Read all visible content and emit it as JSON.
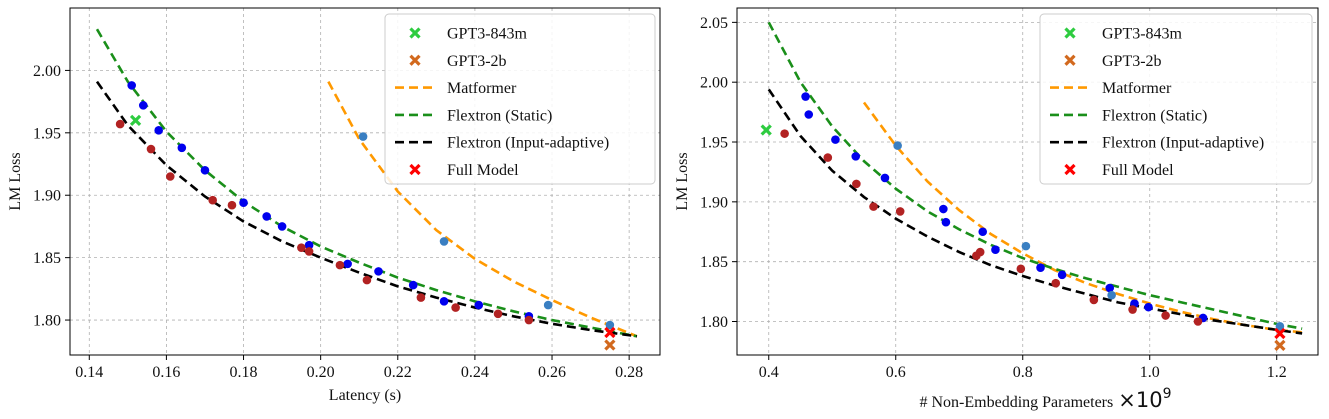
{
  "chart_data": [
    {
      "type": "scatter",
      "title": "",
      "xlabel": "Latency (s)",
      "ylabel": "LM Loss",
      "xlim": [
        0.135,
        0.288
      ],
      "ylim": [
        1.772,
        2.05
      ],
      "xticks": [
        0.14,
        0.16,
        0.18,
        0.2,
        0.22,
        0.24,
        0.26,
        0.28
      ],
      "xtick_labels": [
        "0.14",
        "0.16",
        "0.18",
        "0.20",
        "0.22",
        "0.24",
        "0.26",
        "0.28"
      ],
      "yticks": [
        1.8,
        1.85,
        1.9,
        1.95,
        2.0
      ],
      "ytick_labels": [
        "1.80",
        "1.85",
        "1.90",
        "1.95",
        "2.00"
      ],
      "grid": true,
      "legend_position": "top-right",
      "legend": [
        {
          "label": "GPT3-843m",
          "marker": "x",
          "color": "#2ecc40"
        },
        {
          "label": "GPT3-2b",
          "marker": "x",
          "color": "#d2691e"
        },
        {
          "label": "Matformer",
          "marker": "dash",
          "color": "#ff9900"
        },
        {
          "label": "Flextron (Static)",
          "marker": "dash",
          "color": "#1a8f1a"
        },
        {
          "label": "Flextron (Input-adaptive)",
          "marker": "dash",
          "color": "#000000"
        },
        {
          "label": "Full Model",
          "marker": "x",
          "color": "#ff0000"
        }
      ],
      "series": [
        {
          "kind": "curve",
          "color": "#ff9900",
          "x": [
            0.202,
            0.21,
            0.22,
            0.23,
            0.24,
            0.25,
            0.26,
            0.27,
            0.282
          ],
          "y": [
            1.991,
            1.945,
            1.903,
            1.872,
            1.849,
            1.831,
            1.816,
            1.802,
            1.787
          ]
        },
        {
          "kind": "curve",
          "color": "#1a8f1a",
          "x": [
            0.142,
            0.15,
            0.16,
            0.17,
            0.18,
            0.19,
            0.2,
            0.21,
            0.22,
            0.23,
            0.24,
            0.25,
            0.26,
            0.27,
            0.282
          ],
          "y": [
            2.033,
            1.991,
            1.951,
            1.92,
            1.895,
            1.875,
            1.859,
            1.846,
            1.834,
            1.824,
            1.815,
            1.807,
            1.8,
            1.794,
            1.787
          ]
        },
        {
          "kind": "curve",
          "color": "#000000",
          "x": [
            0.142,
            0.15,
            0.16,
            0.17,
            0.18,
            0.19,
            0.2,
            0.21,
            0.22,
            0.23,
            0.24,
            0.25,
            0.26,
            0.27,
            0.282
          ],
          "y": [
            1.991,
            1.956,
            1.924,
            1.899,
            1.879,
            1.863,
            1.85,
            1.838,
            1.827,
            1.818,
            1.81,
            1.803,
            1.797,
            1.792,
            1.787
          ]
        },
        {
          "kind": "points",
          "color": "#0000ee",
          "x": [
            0.151,
            0.154,
            0.158,
            0.164,
            0.17,
            0.18,
            0.186,
            0.19,
            0.197,
            0.207,
            0.215,
            0.224,
            0.232,
            0.241,
            0.254
          ],
          "y": [
            1.988,
            1.972,
            1.952,
            1.938,
            1.92,
            1.894,
            1.883,
            1.875,
            1.86,
            1.845,
            1.839,
            1.828,
            1.815,
            1.812,
            1.803
          ]
        },
        {
          "kind": "points",
          "color": "#b22222",
          "x": [
            0.148,
            0.156,
            0.161,
            0.172,
            0.177,
            0.195,
            0.197,
            0.205,
            0.212,
            0.226,
            0.235,
            0.246,
            0.254
          ],
          "y": [
            1.957,
            1.937,
            1.915,
            1.896,
            1.892,
            1.858,
            1.855,
            1.844,
            1.832,
            1.818,
            1.81,
            1.805,
            1.8
          ]
        },
        {
          "kind": "points",
          "color": "#3a7fc2",
          "x": [
            0.211,
            0.232,
            0.259,
            0.275
          ],
          "y": [
            1.947,
            1.863,
            1.812,
            1.796
          ]
        },
        {
          "kind": "xmarks",
          "color": "#2ecc40",
          "x": [
            0.152
          ],
          "y": [
            1.96
          ]
        },
        {
          "kind": "xmarks",
          "color": "#d2691e",
          "x": [
            0.275
          ],
          "y": [
            1.78
          ]
        },
        {
          "kind": "xmarks",
          "color": "#ff0000",
          "x": [
            0.275
          ],
          "y": [
            1.79
          ]
        }
      ]
    },
    {
      "type": "scatter",
      "title": "",
      "xlabel": "# Non-Embedding Parameters",
      "xlabel_multiplier": "×10",
      "xlabel_exponent": "9",
      "ylabel": "LM Loss",
      "xlim": [
        0.35,
        1.265
      ],
      "ylim": [
        1.772,
        2.062
      ],
      "xticks": [
        0.4,
        0.6,
        0.8,
        1.0,
        1.2
      ],
      "xtick_labels": [
        "0.4",
        "0.6",
        "0.8",
        "1.0",
        "1.2"
      ],
      "yticks": [
        1.8,
        1.85,
        1.9,
        1.95,
        2.0,
        2.05
      ],
      "ytick_labels": [
        "1.80",
        "1.85",
        "1.90",
        "1.95",
        "2.00",
        "2.05"
      ],
      "grid": true,
      "legend_position": "top-right",
      "legend": [
        {
          "label": "GPT3-843m",
          "marker": "x",
          "color": "#2ecc40"
        },
        {
          "label": "GPT3-2b",
          "marker": "x",
          "color": "#d2691e"
        },
        {
          "label": "Matformer",
          "marker": "dash",
          "color": "#ff9900"
        },
        {
          "label": "Flextron (Static)",
          "marker": "dash",
          "color": "#1a8f1a"
        },
        {
          "label": "Flextron (Input-adaptive)",
          "marker": "dash",
          "color": "#000000"
        },
        {
          "label": "Full Model",
          "marker": "x",
          "color": "#ff0000"
        }
      ],
      "series": [
        {
          "kind": "curve",
          "color": "#ff9900",
          "x": [
            0.55,
            0.6,
            0.65,
            0.7,
            0.75,
            0.8,
            0.85,
            0.9,
            0.95,
            1.0,
            1.05,
            1.1,
            1.15,
            1.2,
            1.24
          ],
          "y": [
            1.983,
            1.947,
            1.917,
            1.893,
            1.873,
            1.857,
            1.843,
            1.832,
            1.823,
            1.815,
            1.808,
            1.802,
            1.797,
            1.793,
            1.791
          ]
        },
        {
          "kind": "curve",
          "color": "#1a8f1a",
          "x": [
            0.4,
            0.45,
            0.5,
            0.55,
            0.6,
            0.65,
            0.7,
            0.75,
            0.8,
            0.85,
            0.9,
            0.95,
            1.0,
            1.05,
            1.1,
            1.15,
            1.2,
            1.24
          ],
          "y": [
            2.05,
            2.0,
            1.963,
            1.934,
            1.911,
            1.892,
            1.877,
            1.864,
            1.853,
            1.844,
            1.836,
            1.829,
            1.822,
            1.816,
            1.81,
            1.804,
            1.798,
            1.794
          ]
        },
        {
          "kind": "curve",
          "color": "#000000",
          "x": [
            0.4,
            0.45,
            0.5,
            0.55,
            0.6,
            0.65,
            0.7,
            0.75,
            0.8,
            0.85,
            0.9,
            0.95,
            1.0,
            1.05,
            1.1,
            1.15,
            1.2,
            1.24
          ],
          "y": [
            1.994,
            1.955,
            1.926,
            1.904,
            1.886,
            1.871,
            1.858,
            1.847,
            1.838,
            1.83,
            1.823,
            1.816,
            1.811,
            1.806,
            1.801,
            1.797,
            1.793,
            1.79
          ]
        },
        {
          "kind": "points",
          "color": "#0000ee",
          "x": [
            0.458,
            0.463,
            0.505,
            0.537,
            0.583,
            0.675,
            0.679,
            0.737,
            0.757,
            0.828,
            0.862,
            0.937,
            0.976,
            0.998,
            1.084
          ],
          "y": [
            1.988,
            1.973,
            1.952,
            1.938,
            1.92,
            1.894,
            1.883,
            1.875,
            1.86,
            1.845,
            1.839,
            1.828,
            1.815,
            1.812,
            1.803
          ]
        },
        {
          "kind": "points",
          "color": "#b22222",
          "x": [
            0.425,
            0.493,
            0.538,
            0.565,
            0.607,
            0.727,
            0.733,
            0.797,
            0.852,
            0.912,
            0.973,
            1.025,
            1.076
          ],
          "y": [
            1.957,
            1.937,
            1.915,
            1.896,
            1.892,
            1.855,
            1.858,
            1.844,
            1.832,
            1.818,
            1.81,
            1.805,
            1.8
          ]
        },
        {
          "kind": "points",
          "color": "#3a7fc2",
          "x": [
            0.603,
            0.805,
            0.94,
            1.205
          ],
          "y": [
            1.947,
            1.863,
            1.822,
            1.796
          ]
        },
        {
          "kind": "xmarks",
          "color": "#2ecc40",
          "x": [
            0.396
          ],
          "y": [
            1.96
          ]
        },
        {
          "kind": "xmarks",
          "color": "#d2691e",
          "x": [
            1.205
          ],
          "y": [
            1.78
          ]
        },
        {
          "kind": "xmarks",
          "color": "#ff0000",
          "x": [
            1.205
          ],
          "y": [
            1.79
          ]
        }
      ]
    }
  ]
}
